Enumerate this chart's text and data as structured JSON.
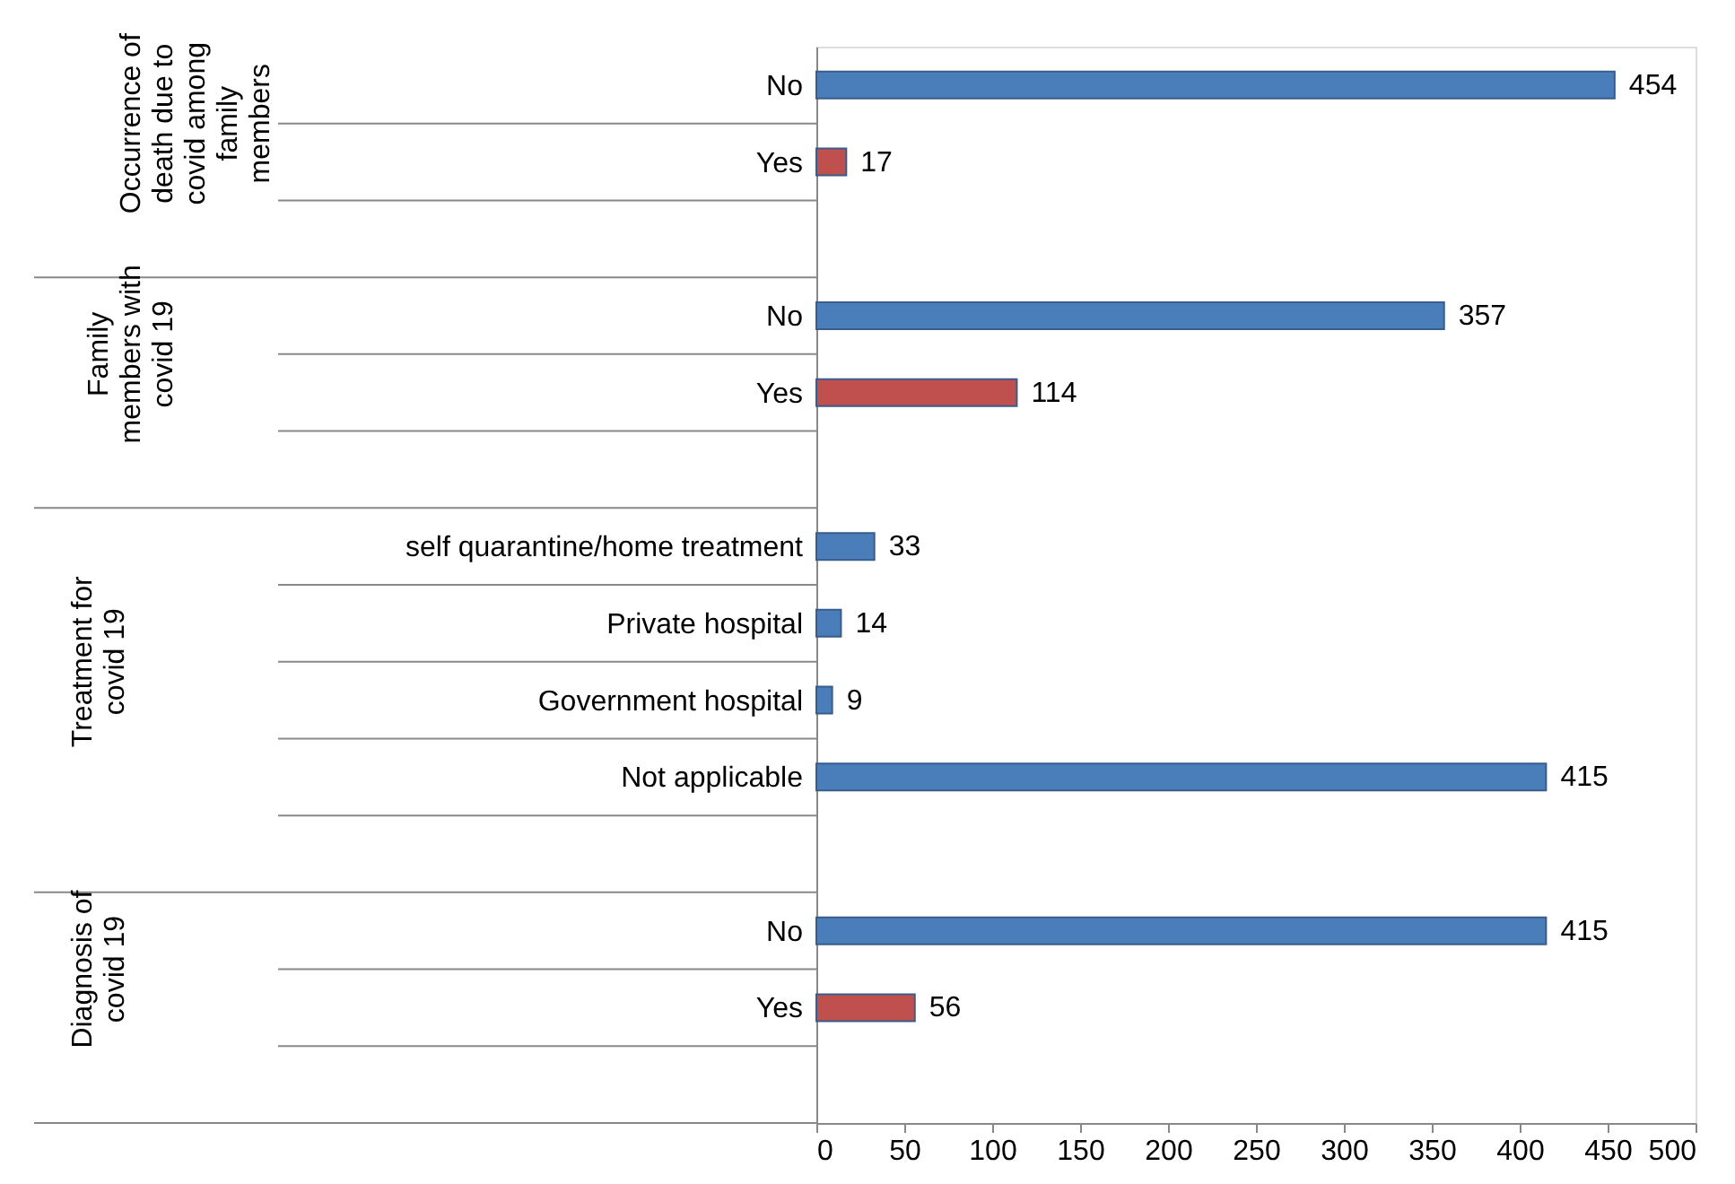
{
  "chart_data": {
    "type": "bar",
    "orientation": "horizontal",
    "categories": [
      "No",
      "Yes",
      null,
      "No",
      "Yes",
      null,
      "self quarantine/home treatment",
      "Private hospital",
      "Government hospital",
      "Not applicable",
      null,
      "No",
      "Yes",
      null
    ],
    "values": [
      454,
      17,
      null,
      357,
      114,
      null,
      33,
      14,
      9,
      415,
      null,
      415,
      56,
      null
    ],
    "colors": [
      "#4a7ebb",
      "#c0504d",
      null,
      "#4a7ebb",
      "#c0504d",
      null,
      "#4a7ebb",
      "#4a7ebb",
      "#4a7ebb",
      "#4a7ebb",
      null,
      "#4a7ebb",
      "#c0504d",
      null
    ],
    "xlim": [
      0,
      500
    ],
    "xticks": [
      0,
      50,
      100,
      150,
      200,
      250,
      300,
      350,
      400,
      450,
      500
    ],
    "grid": false,
    "data_labels": true,
    "annotations": [
      "Occurrence of death due to covid among family members",
      "Family members with covid 19",
      "Treatment for covid 19",
      "Diagnosis of covid 19"
    ]
  }
}
